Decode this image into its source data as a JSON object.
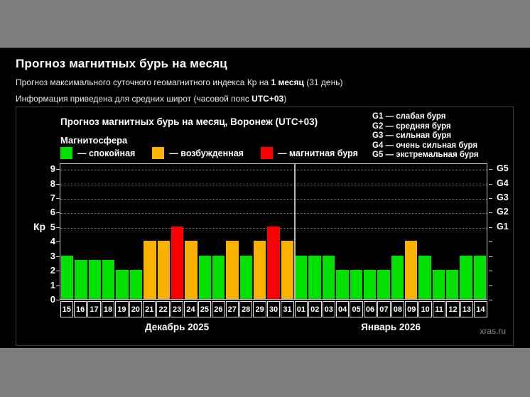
{
  "page": {
    "title": "Прогноз магнитных бурь на месяц",
    "subtitle1_prefix": "Прогноз максимального суточного геомагнитного индекса Кр на ",
    "subtitle1_bold": "1 месяц",
    "subtitle1_suffix": " (31 день)",
    "subtitle2_prefix": "Информация приведена для средних широт (часовой пояс ",
    "subtitle2_bold": "UTC+03",
    "subtitle2_suffix": ")"
  },
  "chart": {
    "title": "Прогноз магнитных бурь на месяц, Воронеж (UTC+03)",
    "legend_title": "Магнитосфера",
    "legend": [
      {
        "state": "quiet",
        "color": "#00e100",
        "label": "— спокойная"
      },
      {
        "state": "excited",
        "color": "#f9b200",
        "label": "— возбужденная"
      },
      {
        "state": "storm",
        "color": "#fa0000",
        "label": "— магнитная буря"
      }
    ],
    "g_legend": [
      "G1 — слабая буря",
      "G2 — средняя буря",
      "G3 — сильная буря",
      "G4 — очень сильная буря",
      "G5 — экстремальная буря"
    ],
    "watermark": "xras.ru"
  },
  "chart_data": {
    "type": "bar",
    "title": "Прогноз магнитных бурь на месяц, Воронеж (UTC+03)",
    "ylabel": "Кр",
    "ylim": [
      0,
      9.4
    ],
    "y_ticks": [
      0,
      1,
      2,
      3,
      4,
      5,
      6,
      7,
      8,
      9
    ],
    "grid_levels": [
      5,
      6,
      7,
      8,
      9
    ],
    "right_axis": [
      {
        "label": "G1",
        "kp": 5
      },
      {
        "label": "G2",
        "kp": 6
      },
      {
        "label": "G3",
        "kp": 7
      },
      {
        "label": "G4",
        "kp": 8
      },
      {
        "label": "G5",
        "kp": 9
      }
    ],
    "categories": [
      "15",
      "16",
      "17",
      "18",
      "19",
      "20",
      "21",
      "22",
      "23",
      "24",
      "25",
      "26",
      "27",
      "28",
      "29",
      "30",
      "31",
      "01",
      "02",
      "03",
      "04",
      "05",
      "06",
      "07",
      "08",
      "09",
      "10",
      "11",
      "12",
      "13",
      "14"
    ],
    "values": [
      3,
      2.67,
      2.67,
      2.67,
      2,
      2,
      4,
      4,
      5,
      4,
      3,
      3,
      4,
      3,
      4,
      5,
      4,
      3,
      3,
      3,
      2,
      2,
      2,
      2,
      3,
      4,
      3,
      2,
      2,
      3,
      3
    ],
    "states": [
      "quiet",
      "quiet",
      "quiet",
      "quiet",
      "quiet",
      "quiet",
      "excited",
      "excited",
      "storm",
      "excited",
      "quiet",
      "quiet",
      "excited",
      "quiet",
      "excited",
      "storm",
      "excited",
      "quiet",
      "quiet",
      "quiet",
      "quiet",
      "quiet",
      "quiet",
      "quiet",
      "quiet",
      "excited",
      "quiet",
      "quiet",
      "quiet",
      "quiet",
      "quiet"
    ],
    "months": [
      {
        "label": "Декабрь 2025",
        "days": 17
      },
      {
        "label": "Январь 2026",
        "days": 14
      }
    ],
    "legend_position": "top",
    "grid": "dotted-horizontal-g-levels-only"
  }
}
